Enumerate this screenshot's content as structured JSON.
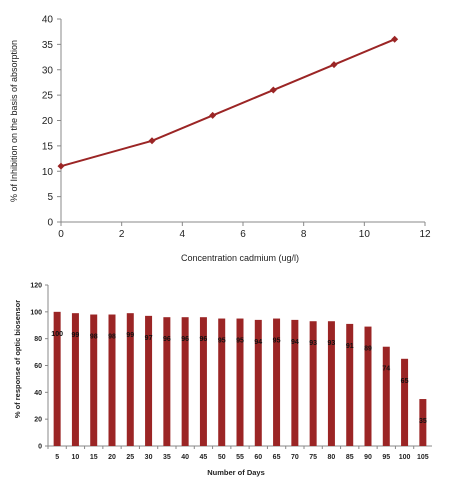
{
  "colors": {
    "series": "#9b2525",
    "axis": "#888888"
  },
  "chart_data": [
    {
      "type": "line",
      "xlabel": "Concentration cadmium (ug/l)",
      "ylabel": "% of Inhibition on the basis of absorption",
      "xlim": [
        0,
        12
      ],
      "ylim": [
        0,
        40
      ],
      "xticks": [
        0,
        2,
        4,
        6,
        8,
        10,
        12
      ],
      "yticks": [
        0,
        5,
        10,
        15,
        20,
        25,
        30,
        35,
        40
      ],
      "x": [
        0,
        3,
        5,
        7,
        9,
        11
      ],
      "y": [
        11,
        16,
        21,
        26,
        31,
        36
      ],
      "grid": false
    },
    {
      "type": "bar",
      "xlabel": "Number of Days",
      "ylabel": "% of response of optic biosensor",
      "ylim": [
        0,
        120
      ],
      "yticks": [
        0,
        20,
        40,
        60,
        80,
        100,
        120
      ],
      "categories": [
        "5",
        "10",
        "15",
        "20",
        "25",
        "30",
        "35",
        "40",
        "45",
        "50",
        "55",
        "60",
        "65",
        "70",
        "75",
        "80",
        "85",
        "90",
        "95",
        "100",
        "105"
      ],
      "values": [
        100,
        99,
        98,
        98,
        99,
        97,
        96,
        96,
        96,
        95,
        95,
        94,
        95,
        94,
        93,
        93,
        91,
        89,
        74,
        65,
        35
      ],
      "data_labels": [
        "100",
        "99",
        "98",
        "98",
        "99",
        "97",
        "96",
        "96",
        "96",
        "95",
        "95",
        "94",
        "95",
        "94",
        "93",
        "93",
        "91",
        "89",
        "74",
        "65",
        "35"
      ],
      "grid": false
    }
  ]
}
